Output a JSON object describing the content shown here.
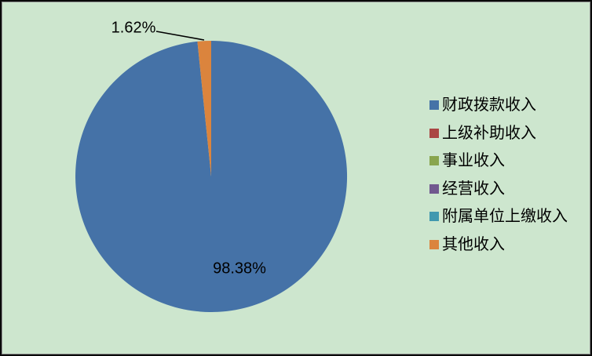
{
  "chart_data": {
    "type": "pie",
    "title": "",
    "categories": [
      "财政拨款收入",
      "上级补助收入",
      "事业收入",
      "经营收入",
      "附属单位上缴收入",
      "其他收入"
    ],
    "values": [
      98.38,
      0,
      0,
      0,
      0,
      1.62
    ],
    "colors": [
      "#4572A7",
      "#AA4643",
      "#89A54E",
      "#71588F",
      "#4198AF",
      "#DB843D"
    ],
    "data_labels": [
      "98.38%",
      null,
      null,
      null,
      null,
      "1.62%"
    ],
    "legend_position": "right",
    "start_angle": "12-oclock",
    "direction": "clockwise",
    "background_color": "#CDE6CE",
    "label_color": "#000000"
  }
}
